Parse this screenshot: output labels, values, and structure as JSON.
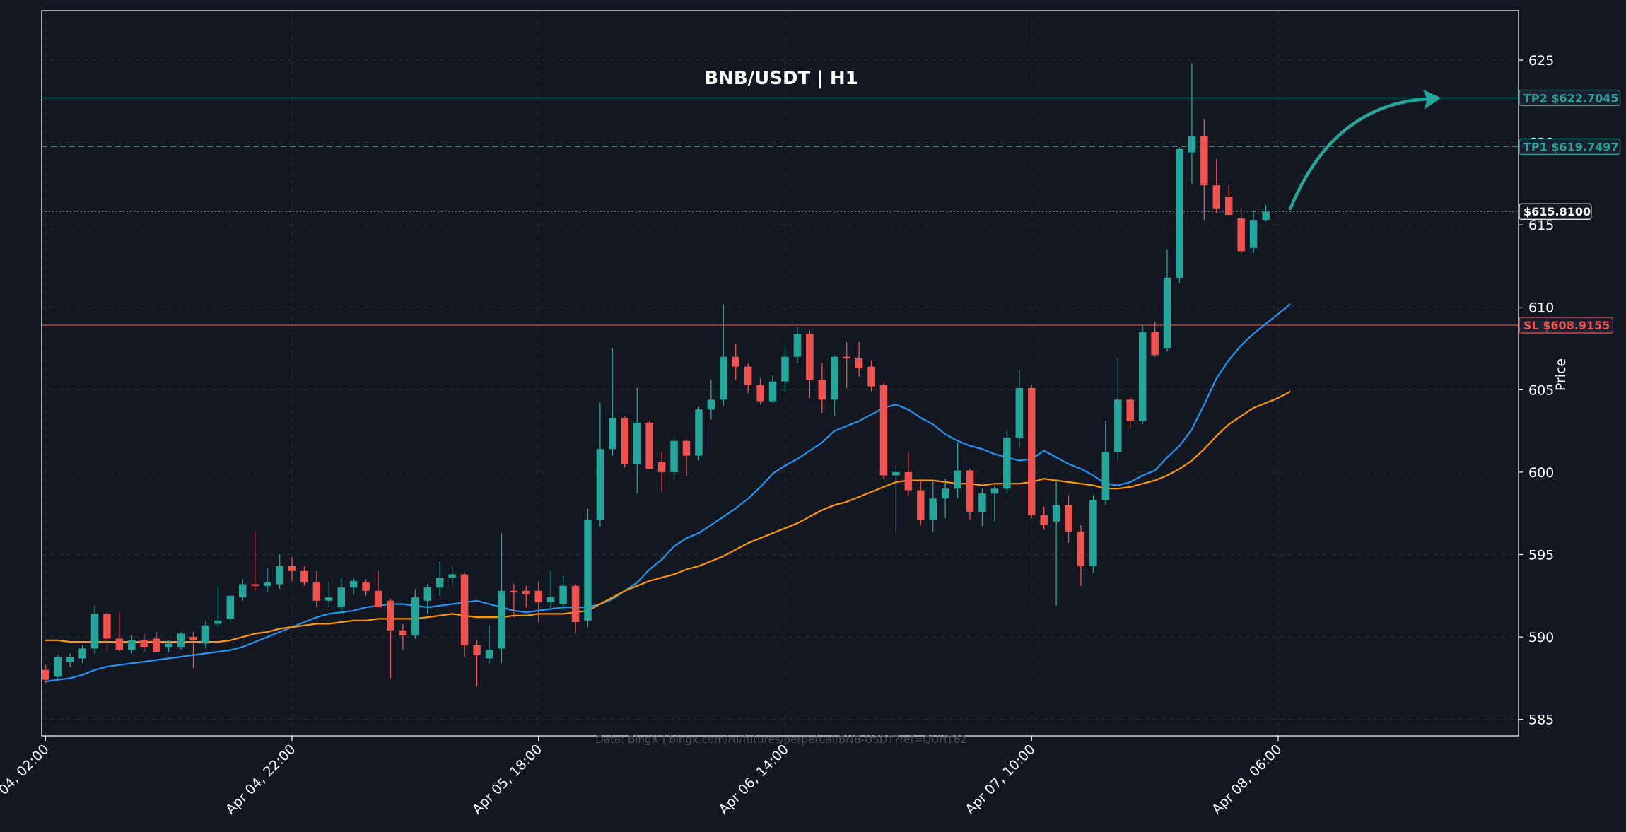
{
  "chart_data": {
    "type": "candlestick",
    "title": "BNB/USDT | H1",
    "ylabel": "Price",
    "ylim": [
      584,
      628
    ],
    "yticks": [
      585,
      590,
      595,
      600,
      605,
      610,
      615,
      620,
      625
    ],
    "xticks": [
      {
        "i": 0,
        "label": "Apr 04, 02:00"
      },
      {
        "i": 20,
        "label": "Apr 04, 22:00"
      },
      {
        "i": 40,
        "label": "Apr 05, 18:00"
      },
      {
        "i": 60,
        "label": "Apr 06, 14:00"
      },
      {
        "i": 80,
        "label": "Apr 07, 10:00"
      },
      {
        "i": 100,
        "label": "Apr 08, 06:00"
      }
    ],
    "xrange": [
      -0.3,
      119.5
    ],
    "grid": true,
    "candles": [
      [
        588.0,
        588.3,
        587.2,
        587.4
      ],
      [
        587.6,
        588.9,
        587.5,
        588.8
      ],
      [
        588.5,
        589.0,
        588.2,
        588.8
      ],
      [
        588.7,
        589.5,
        588.4,
        589.3
      ],
      [
        589.3,
        591.9,
        589.0,
        591.4
      ],
      [
        591.4,
        591.5,
        589.0,
        589.9
      ],
      [
        589.9,
        591.5,
        589.1,
        589.2
      ],
      [
        589.2,
        590.1,
        589.0,
        589.8
      ],
      [
        589.8,
        590.2,
        589.1,
        589.4
      ],
      [
        589.9,
        590.3,
        589.5,
        589.1
      ],
      [
        589.4,
        589.8,
        589.1,
        589.6
      ],
      [
        589.4,
        590.3,
        589.2,
        590.2
      ],
      [
        590.0,
        590.3,
        588.1,
        589.8
      ],
      [
        589.6,
        591.0,
        589.3,
        590.7
      ],
      [
        590.8,
        593.1,
        590.6,
        591.0
      ],
      [
        591.1,
        592.5,
        590.9,
        592.5
      ],
      [
        592.4,
        593.5,
        592.2,
        593.2
      ],
      [
        593.2,
        596.4,
        592.8,
        593.1
      ],
      [
        593.1,
        594.2,
        592.7,
        593.3
      ],
      [
        593.2,
        595.0,
        592.9,
        594.3
      ],
      [
        594.3,
        594.8,
        593.4,
        594.0
      ],
      [
        594.0,
        594.3,
        593.1,
        593.3
      ],
      [
        593.3,
        594.0,
        591.8,
        592.2
      ],
      [
        592.2,
        593.4,
        591.8,
        592.4
      ],
      [
        591.8,
        593.6,
        591.4,
        593.0
      ],
      [
        593.0,
        593.6,
        592.6,
        593.4
      ],
      [
        593.3,
        593.5,
        592.5,
        592.8
      ],
      [
        592.8,
        594.0,
        591.9,
        591.8
      ],
      [
        592.2,
        592.3,
        587.5,
        590.4
      ],
      [
        590.4,
        590.8,
        589.2,
        590.1
      ],
      [
        590.1,
        592.9,
        589.9,
        592.4
      ],
      [
        592.2,
        593.2,
        591.4,
        593.0
      ],
      [
        593.0,
        594.6,
        592.5,
        593.6
      ],
      [
        593.6,
        594.3,
        593.1,
        593.8
      ],
      [
        593.8,
        593.9,
        588.8,
        589.5
      ],
      [
        589.5,
        589.8,
        587.0,
        588.9
      ],
      [
        588.7,
        590.7,
        588.4,
        589.2
      ],
      [
        589.3,
        596.3,
        588.4,
        592.8
      ],
      [
        592.8,
        593.2,
        591.2,
        592.7
      ],
      [
        592.8,
        593.1,
        591.8,
        592.6
      ],
      [
        592.8,
        593.3,
        590.9,
        592.1
      ],
      [
        592.1,
        594.0,
        591.6,
        592.4
      ],
      [
        592.0,
        593.7,
        591.6,
        593.1
      ],
      [
        593.1,
        593.2,
        590.2,
        590.9
      ],
      [
        591.0,
        597.8,
        590.6,
        597.1
      ],
      [
        597.1,
        604.2,
        596.7,
        601.4
      ],
      [
        601.4,
        607.5,
        601.0,
        603.3
      ],
      [
        603.3,
        603.4,
        600.3,
        600.5
      ],
      [
        600.5,
        605.1,
        598.7,
        603.0
      ],
      [
        603.0,
        603.1,
        600.2,
        600.2
      ],
      [
        600.6,
        601.2,
        598.8,
        600.0
      ],
      [
        600.0,
        602.3,
        599.5,
        601.9
      ],
      [
        601.9,
        602.0,
        599.8,
        601.0
      ],
      [
        601.0,
        604.0,
        600.7,
        603.8
      ],
      [
        603.8,
        605.6,
        603.2,
        604.4
      ],
      [
        604.4,
        610.2,
        604.0,
        607.0
      ],
      [
        607.0,
        607.8,
        605.6,
        606.4
      ],
      [
        606.4,
        606.6,
        604.8,
        605.3
      ],
      [
        605.3,
        605.7,
        604.1,
        604.3
      ],
      [
        604.3,
        605.9,
        604.2,
        605.5
      ],
      [
        605.5,
        607.7,
        604.9,
        607.0
      ],
      [
        607.0,
        608.8,
        606.6,
        608.4
      ],
      [
        608.4,
        608.6,
        604.5,
        605.6
      ],
      [
        605.6,
        606.6,
        603.6,
        604.4
      ],
      [
        604.4,
        607.1,
        603.4,
        607.0
      ],
      [
        607.0,
        607.9,
        605.1,
        606.9
      ],
      [
        606.9,
        607.9,
        605.8,
        606.3
      ],
      [
        606.4,
        606.8,
        604.9,
        605.2
      ],
      [
        605.3,
        605.4,
        599.6,
        599.8
      ],
      [
        599.8,
        600.4,
        596.3,
        600.0
      ],
      [
        600.0,
        601.2,
        598.6,
        598.9
      ],
      [
        598.9,
        599.6,
        596.8,
        597.1
      ],
      [
        597.1,
        599.5,
        596.4,
        598.4
      ],
      [
        598.4,
        599.6,
        597.2,
        599.0
      ],
      [
        599.0,
        601.8,
        598.4,
        600.1
      ],
      [
        600.1,
        600.2,
        597.1,
        597.6
      ],
      [
        597.6,
        599.0,
        596.7,
        598.7
      ],
      [
        598.7,
        599.2,
        597.0,
        599.0
      ],
      [
        599.0,
        602.5,
        598.7,
        602.1
      ],
      [
        602.1,
        606.2,
        601.5,
        605.1
      ],
      [
        605.1,
        605.3,
        597.2,
        597.4
      ],
      [
        597.4,
        597.9,
        596.5,
        596.8
      ],
      [
        597.0,
        599.5,
        591.9,
        598.0
      ],
      [
        598.0,
        598.6,
        595.7,
        596.4
      ],
      [
        596.4,
        596.8,
        593.1,
        594.3
      ],
      [
        594.3,
        598.6,
        593.9,
        598.3
      ],
      [
        598.3,
        603.1,
        598.0,
        601.2
      ],
      [
        601.2,
        606.9,
        600.7,
        604.4
      ],
      [
        604.4,
        604.6,
        602.7,
        603.1
      ],
      [
        603.1,
        608.9,
        602.9,
        608.5
      ],
      [
        608.5,
        609.1,
        607.0,
        607.1
      ],
      [
        607.5,
        613.5,
        607.3,
        611.8
      ],
      [
        611.8,
        619.7,
        611.5,
        619.6
      ],
      [
        619.4,
        624.8,
        617.5,
        620.4
      ],
      [
        620.4,
        621.4,
        615.3,
        617.4
      ],
      [
        617.4,
        619.0,
        615.7,
        616.0
      ],
      [
        616.7,
        617.4,
        615.9,
        615.6
      ],
      [
        615.4,
        616.0,
        613.2,
        613.4
      ],
      [
        613.6,
        615.9,
        613.3,
        615.3
      ],
      [
        615.3,
        616.2,
        615.2,
        615.8
      ]
    ],
    "series": [
      {
        "name": "EMA20",
        "color": "#2196f3",
        "values": [
          587.3,
          587.4,
          587.5,
          587.7,
          588.0,
          588.2,
          588.3,
          588.4,
          588.5,
          588.6,
          588.7,
          588.8,
          588.9,
          589.0,
          589.1,
          589.2,
          589.4,
          589.7,
          590.0,
          590.3,
          590.6,
          590.9,
          591.2,
          591.4,
          591.5,
          591.6,
          591.8,
          591.9,
          592.0,
          592.0,
          591.9,
          591.8,
          591.9,
          592.0,
          592.1,
          592.2,
          592.0,
          591.8,
          591.6,
          591.5,
          591.6,
          591.7,
          591.8,
          591.8,
          591.8,
          592.0,
          592.3,
          592.8,
          593.3,
          594.1,
          594.7,
          595.5,
          596.0,
          596.3,
          596.8,
          597.3,
          597.8,
          598.4,
          599.1,
          599.9,
          600.4,
          600.8,
          601.3,
          601.8,
          602.5,
          602.8,
          603.1,
          603.5,
          603.9,
          604.1,
          603.8,
          603.3,
          602.9,
          602.3,
          601.9,
          601.6,
          601.4,
          601.1,
          600.9,
          600.7,
          600.8,
          601.3,
          600.9,
          600.5,
          600.2,
          599.8,
          599.3,
          599.2,
          599.4,
          599.8,
          600.1,
          600.9,
          601.6,
          602.6,
          604.1,
          605.7,
          606.8,
          607.7,
          608.4,
          609.0,
          609.6,
          610.2
        ]
      },
      {
        "name": "EMA50",
        "color": "#ff9800",
        "values": [
          589.8,
          589.8,
          589.7,
          589.7,
          589.7,
          589.7,
          589.7,
          589.7,
          589.7,
          589.7,
          589.7,
          589.7,
          589.7,
          589.7,
          589.7,
          589.8,
          590.0,
          590.2,
          590.3,
          590.5,
          590.6,
          590.7,
          590.8,
          590.8,
          590.9,
          591.0,
          591.0,
          591.1,
          591.1,
          591.1,
          591.1,
          591.2,
          591.3,
          591.4,
          591.3,
          591.2,
          591.2,
          591.2,
          591.3,
          591.3,
          591.4,
          591.4,
          591.4,
          591.5,
          591.6,
          592.0,
          592.4,
          592.8,
          593.1,
          593.4,
          593.6,
          593.8,
          594.1,
          594.3,
          594.6,
          594.9,
          595.3,
          595.7,
          596.0,
          596.3,
          596.6,
          596.9,
          597.3,
          597.7,
          598.0,
          598.2,
          598.5,
          598.8,
          599.1,
          599.4,
          599.5,
          599.5,
          599.5,
          599.4,
          599.3,
          599.3,
          599.2,
          599.3,
          599.3,
          599.3,
          599.4,
          599.6,
          599.5,
          599.4,
          599.3,
          599.2,
          599.0,
          599.0,
          599.1,
          599.3,
          599.5,
          599.8,
          600.2,
          600.7,
          601.4,
          602.2,
          602.9,
          603.4,
          603.9,
          604.2,
          604.5,
          604.9
        ]
      }
    ],
    "levels": [
      {
        "name": "TP2",
        "label": "TP2 $622.7045",
        "price": 622.7045,
        "color": "#26a69a",
        "style": "solid"
      },
      {
        "name": "TP1",
        "label": "TP1 $619.7497",
        "price": 619.7497,
        "color": "#26a69a",
        "style": "dashed"
      },
      {
        "name": "Current",
        "label": "$615.8100",
        "price": 615.81,
        "color": "#9598a1",
        "style": "dotted"
      },
      {
        "name": "SL",
        "label": "SL $608.9155",
        "price": 608.9155,
        "color": "#ef5350",
        "style": "solid"
      }
    ],
    "arrow": {
      "from": [
        101,
        616.0
      ],
      "to": [
        113,
        622.7
      ],
      "color": "#26a69a"
    },
    "watermark": "Data: BingX | bingx.com/ru/futures/perpetual/BNB-USDT?ref=QUHT62",
    "colors": {
      "up": "#26a69a",
      "down": "#ef5350",
      "background": "#131722",
      "grid": "#2a2e39",
      "axis": "#ffffff"
    }
  }
}
